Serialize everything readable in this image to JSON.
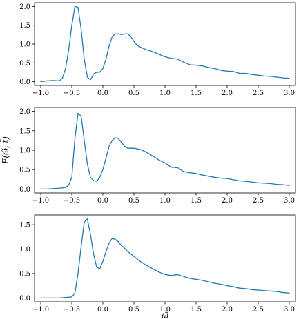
{
  "chart_data": [
    {
      "type": "line",
      "xlabel": "",
      "ylabel": "",
      "xlim": [
        -1.1,
        3.1
      ],
      "ylim": [
        -0.1,
        2.1
      ],
      "xticks": [
        "−1.0",
        "−0.5",
        "0.0",
        "0.5",
        "1.0",
        "1.5",
        "2.0",
        "2.5",
        "3.0"
      ],
      "xtick_values": [
        -1.0,
        -0.5,
        0.0,
        0.5,
        1.0,
        1.5,
        2.0,
        2.5,
        3.0
      ],
      "yticks": [
        "0.0",
        "0.5",
        "1.0",
        "1.5",
        "2.0"
      ],
      "ytick_values": [
        0.0,
        0.5,
        1.0,
        1.5,
        2.0
      ],
      "series": [
        {
          "color": "#1f77b4",
          "x": [
            -1.0,
            -0.9,
            -0.8,
            -0.7,
            -0.65,
            -0.6,
            -0.55,
            -0.5,
            -0.45,
            -0.4,
            -0.35,
            -0.3,
            -0.25,
            -0.2,
            -0.15,
            -0.1,
            -0.05,
            0.0,
            0.05,
            0.1,
            0.15,
            0.2,
            0.25,
            0.3,
            0.35,
            0.4,
            0.45,
            0.5,
            0.55,
            0.6,
            0.7,
            0.8,
            0.9,
            1.0,
            1.1,
            1.2,
            1.3,
            1.4,
            1.5,
            1.6,
            1.7,
            1.8,
            1.9,
            2.0,
            2.1,
            2.2,
            2.3,
            2.4,
            2.5,
            2.6,
            2.7,
            2.8,
            2.9,
            3.0
          ],
          "y": [
            0.0,
            0.02,
            0.03,
            0.02,
            0.1,
            0.35,
            0.85,
            1.5,
            2.0,
            1.98,
            1.4,
            0.6,
            0.12,
            0.05,
            0.2,
            0.25,
            0.25,
            0.35,
            0.6,
            0.95,
            1.2,
            1.27,
            1.27,
            1.25,
            1.27,
            1.27,
            1.2,
            1.07,
            0.97,
            0.92,
            0.85,
            0.8,
            0.73,
            0.66,
            0.62,
            0.6,
            0.52,
            0.45,
            0.44,
            0.42,
            0.38,
            0.35,
            0.3,
            0.28,
            0.27,
            0.22,
            0.22,
            0.19,
            0.17,
            0.15,
            0.14,
            0.12,
            0.1,
            0.09
          ]
        }
      ]
    },
    {
      "type": "line",
      "xlabel": "",
      "ylabel": "F̃(ω̃, t̃)",
      "xlim": [
        -1.1,
        3.1
      ],
      "ylim": [
        -0.1,
        2.1
      ],
      "xticks": [
        "−1.0",
        "−0.5",
        "0.0",
        "0.5",
        "1.0",
        "1.5",
        "2.0",
        "2.5",
        "3.0"
      ],
      "xtick_values": [
        -1.0,
        -0.5,
        0.0,
        0.5,
        1.0,
        1.5,
        2.0,
        2.5,
        3.0
      ],
      "yticks": [
        "0.0",
        "0.5",
        "1.0",
        "1.5",
        "2.0"
      ],
      "ytick_values": [
        0.0,
        0.5,
        1.0,
        1.5,
        2.0
      ],
      "series": [
        {
          "color": "#1f77b4",
          "x": [
            -1.0,
            -0.9,
            -0.8,
            -0.7,
            -0.6,
            -0.55,
            -0.5,
            -0.45,
            -0.4,
            -0.35,
            -0.3,
            -0.25,
            -0.2,
            -0.15,
            -0.1,
            -0.05,
            0.0,
            0.05,
            0.1,
            0.15,
            0.2,
            0.25,
            0.3,
            0.35,
            0.4,
            0.5,
            0.6,
            0.7,
            0.8,
            0.9,
            1.0,
            1.1,
            1.2,
            1.3,
            1.4,
            1.5,
            1.6,
            1.7,
            1.8,
            1.9,
            2.0,
            2.1,
            2.2,
            2.3,
            2.4,
            2.5,
            2.6,
            2.7,
            2.8,
            2.9,
            3.0
          ],
          "y": [
            0.0,
            0.0,
            0.01,
            0.02,
            0.04,
            0.1,
            0.3,
            1.3,
            1.95,
            1.88,
            1.25,
            0.65,
            0.3,
            0.22,
            0.2,
            0.3,
            0.5,
            0.8,
            1.1,
            1.25,
            1.32,
            1.3,
            1.2,
            1.1,
            1.05,
            1.05,
            1.02,
            0.95,
            0.85,
            0.75,
            0.67,
            0.56,
            0.55,
            0.45,
            0.42,
            0.4,
            0.36,
            0.33,
            0.3,
            0.28,
            0.27,
            0.24,
            0.21,
            0.2,
            0.18,
            0.16,
            0.15,
            0.14,
            0.12,
            0.11,
            0.09
          ]
        }
      ]
    },
    {
      "type": "line",
      "xlabel": "ω̃",
      "ylabel": "",
      "xlim": [
        -1.1,
        3.1
      ],
      "ylim": [
        -0.08,
        1.7
      ],
      "xticks": [
        "−1.0",
        "−0.5",
        "0.0",
        "0.5",
        "1.0",
        "1.5",
        "2.0",
        "2.5",
        "3.0"
      ],
      "xtick_values": [
        -1.0,
        -0.5,
        0.0,
        0.5,
        1.0,
        1.5,
        2.0,
        2.5,
        3.0
      ],
      "yticks": [
        "0.0",
        "0.5",
        "1.0",
        "1.5"
      ],
      "ytick_values": [
        0.0,
        0.5,
        1.0,
        1.5
      ],
      "series": [
        {
          "color": "#1f77b4",
          "x": [
            -1.0,
            -0.9,
            -0.8,
            -0.7,
            -0.6,
            -0.5,
            -0.45,
            -0.4,
            -0.35,
            -0.3,
            -0.25,
            -0.2,
            -0.15,
            -0.1,
            -0.05,
            0.0,
            0.05,
            0.1,
            0.15,
            0.2,
            0.25,
            0.3,
            0.35,
            0.4,
            0.5,
            0.6,
            0.7,
            0.8,
            0.9,
            1.0,
            1.1,
            1.2,
            1.3,
            1.4,
            1.5,
            1.6,
            1.7,
            1.8,
            1.9,
            2.0,
            2.1,
            2.2,
            2.3,
            2.4,
            2.5,
            2.6,
            2.7,
            2.8,
            2.9,
            3.0
          ],
          "y": [
            0.0,
            0.0,
            0.0,
            0.0,
            0.01,
            0.02,
            0.1,
            0.5,
            1.05,
            1.55,
            1.62,
            1.3,
            0.9,
            0.63,
            0.6,
            0.75,
            0.95,
            1.12,
            1.22,
            1.2,
            1.15,
            1.07,
            1.02,
            0.95,
            0.85,
            0.75,
            0.67,
            0.6,
            0.53,
            0.48,
            0.46,
            0.48,
            0.44,
            0.4,
            0.38,
            0.36,
            0.33,
            0.3,
            0.28,
            0.25,
            0.23,
            0.2,
            0.19,
            0.17,
            0.16,
            0.15,
            0.14,
            0.13,
            0.11,
            0.1
          ]
        }
      ]
    }
  ]
}
